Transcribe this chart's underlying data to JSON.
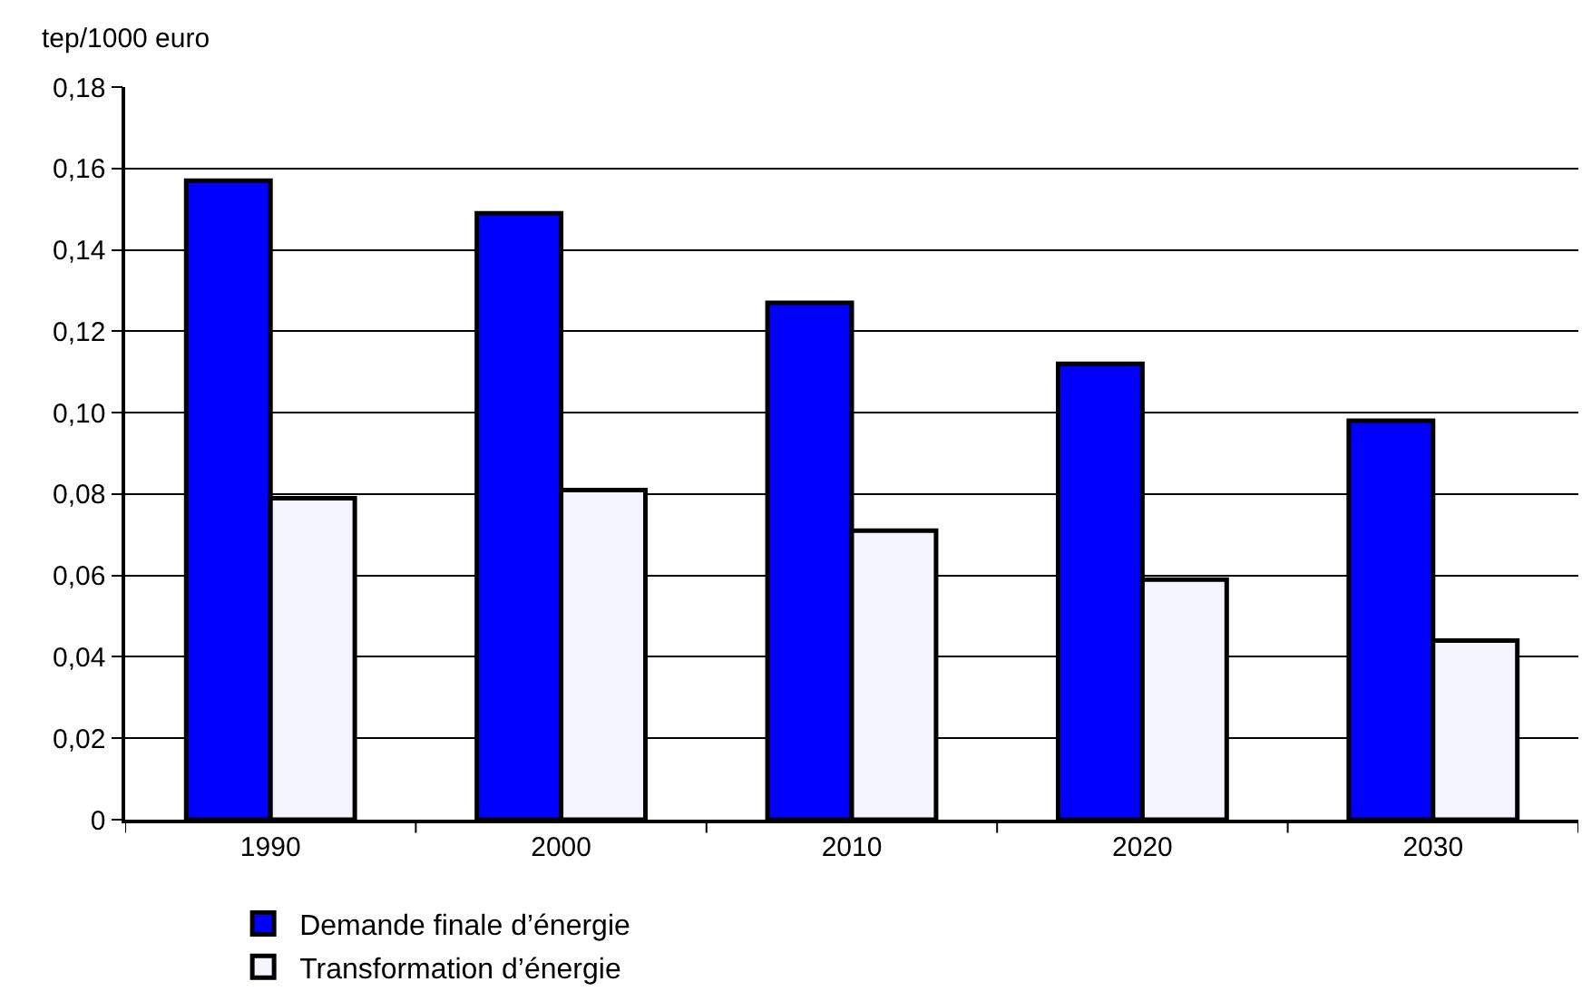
{
  "chart_data": {
    "type": "bar",
    "ylabel": "tep/1000 euro",
    "categories": [
      "1990",
      "2000",
      "2010",
      "2020",
      "2030"
    ],
    "series": [
      {
        "name": "Demande finale d’énergie",
        "color": "#0000ff",
        "values": [
          0.157,
          0.149,
          0.127,
          0.112,
          0.098
        ]
      },
      {
        "name": "Transformation d’énergie",
        "color": "#f5f5ff",
        "values": [
          0.079,
          0.081,
          0.071,
          0.059,
          0.044
        ]
      }
    ],
    "ylim": [
      0,
      0.18
    ],
    "yticks": [
      0,
      {
        "value": 0.02,
        "label": "0,02"
      },
      {
        "value": 0.04,
        "label": "0,04"
      },
      {
        "value": 0.06,
        "label": "0,06"
      },
      {
        "value": 0.08,
        "label": "0,08"
      },
      {
        "value": 0.1,
        "label": "0,10"
      },
      {
        "value": 0.12,
        "label": "0,12"
      },
      {
        "value": 0.14,
        "label": "0,14"
      },
      {
        "value": 0.16,
        "label": "0,16"
      },
      {
        "value": 0.18,
        "label": "0,18"
      }
    ],
    "grid": "y",
    "legend": "bottom"
  }
}
